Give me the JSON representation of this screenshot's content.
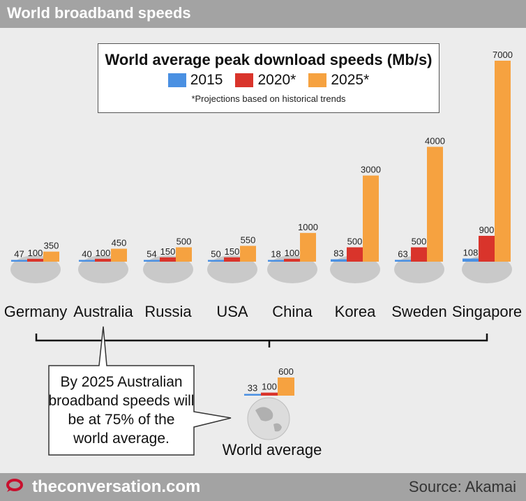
{
  "header": {
    "title": "World broadband speeds"
  },
  "legend": {
    "title": "World average peak download speeds (Mb/s)",
    "items": [
      {
        "label": "2015",
        "color": "#4a90e2"
      },
      {
        "label": "2020*",
        "color": "#d9342b"
      },
      {
        "label": "2025*",
        "color": "#f6a240"
      }
    ],
    "note": "*Projections based on historical trends"
  },
  "chart_data": {
    "type": "bar",
    "title": "World average peak download speeds (Mb/s)",
    "categories": [
      "Germany",
      "Australia",
      "Russia",
      "USA",
      "China",
      "Korea",
      "Sweden",
      "Singapore"
    ],
    "series": [
      {
        "name": "2015",
        "values": [
          47,
          40,
          54,
          50,
          18,
          83,
          63,
          108
        ]
      },
      {
        "name": "2020*",
        "values": [
          100,
          100,
          150,
          150,
          100,
          500,
          500,
          900
        ]
      },
      {
        "name": "2025*",
        "values": [
          350,
          450,
          500,
          550,
          1000,
          3000,
          4000,
          7000
        ]
      }
    ],
    "world_average": {
      "label": "World average",
      "values": [
        33,
        100,
        600
      ]
    },
    "ylim": [
      0,
      7000
    ]
  },
  "callout": {
    "text": "By 2025 Australian broadband speeds will be at 75% of the world average."
  },
  "footer": {
    "site": "theconversation.com",
    "source": "Source: Akamai"
  }
}
